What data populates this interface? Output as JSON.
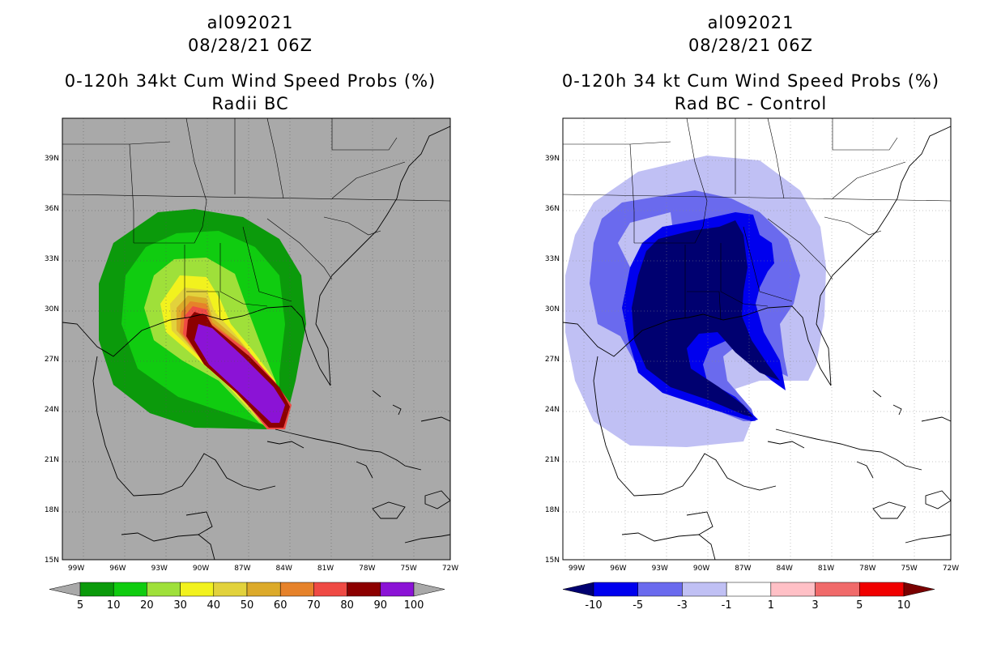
{
  "left": {
    "storm_id": "al092021",
    "datetime": "08/28/21 06Z",
    "title": "0-120h 34kt Cum Wind Speed Probs (%)",
    "subtitle": "Radii BC",
    "colors": {
      "background": "#a9a9a9",
      "c5": "#0b9a0b",
      "c10": "#10cc10",
      "c20": "#9fe03a",
      "c30": "#f2f21e",
      "c40": "#e2d23c",
      "c50": "#dcaa2a",
      "c60": "#e6822a",
      "c70": "#ef4a44",
      "c80": "#8c0000",
      "c90": "#8b13d6"
    },
    "colorbar": {
      "labels": [
        "5",
        "10",
        "20",
        "30",
        "40",
        "50",
        "60",
        "70",
        "80",
        "90",
        "100"
      ],
      "colors": [
        "#0b9a0b",
        "#10cc10",
        "#9fe03a",
        "#f2f21e",
        "#e2d23c",
        "#dcaa2a",
        "#e6822a",
        "#ef4a44",
        "#8c0000",
        "#8b13d6"
      ],
      "under": "#a9a9a9",
      "over": "#a9a9a9"
    }
  },
  "right": {
    "storm_id": "al092021",
    "datetime": "08/28/21 06Z",
    "title": "0-120h 34 kt Cum Wind Speed Probs (%)",
    "subtitle": "Rad BC - Control",
    "colors": {
      "background": "#ffffff",
      "m10": "#000070",
      "m5": "#0000ee",
      "m3": "#6a6aee",
      "m1": "#c0c0f4"
    },
    "colorbar": {
      "labels": [
        "-10",
        "-5",
        "-3",
        "-1",
        "1",
        "3",
        "5",
        "10"
      ],
      "colors": [
        "#0000ee",
        "#6a6aee",
        "#c0c0f4",
        "#ffffff",
        "#ffc0c6",
        "#f06a6a",
        "#f00000"
      ],
      "under": "#000070",
      "over": "#7a0000"
    }
  },
  "axes": {
    "lon_labels": [
      "99W",
      "96W",
      "93W",
      "90W",
      "87W",
      "84W",
      "81W",
      "78W",
      "75W",
      "72W"
    ],
    "lat_labels": [
      "39N",
      "36N",
      "33N",
      "30N",
      "27N",
      "24N",
      "21N",
      "18N",
      "15N"
    ],
    "lon_range": [
      -100,
      -72
    ],
    "lat_range": [
      15,
      41
    ]
  }
}
